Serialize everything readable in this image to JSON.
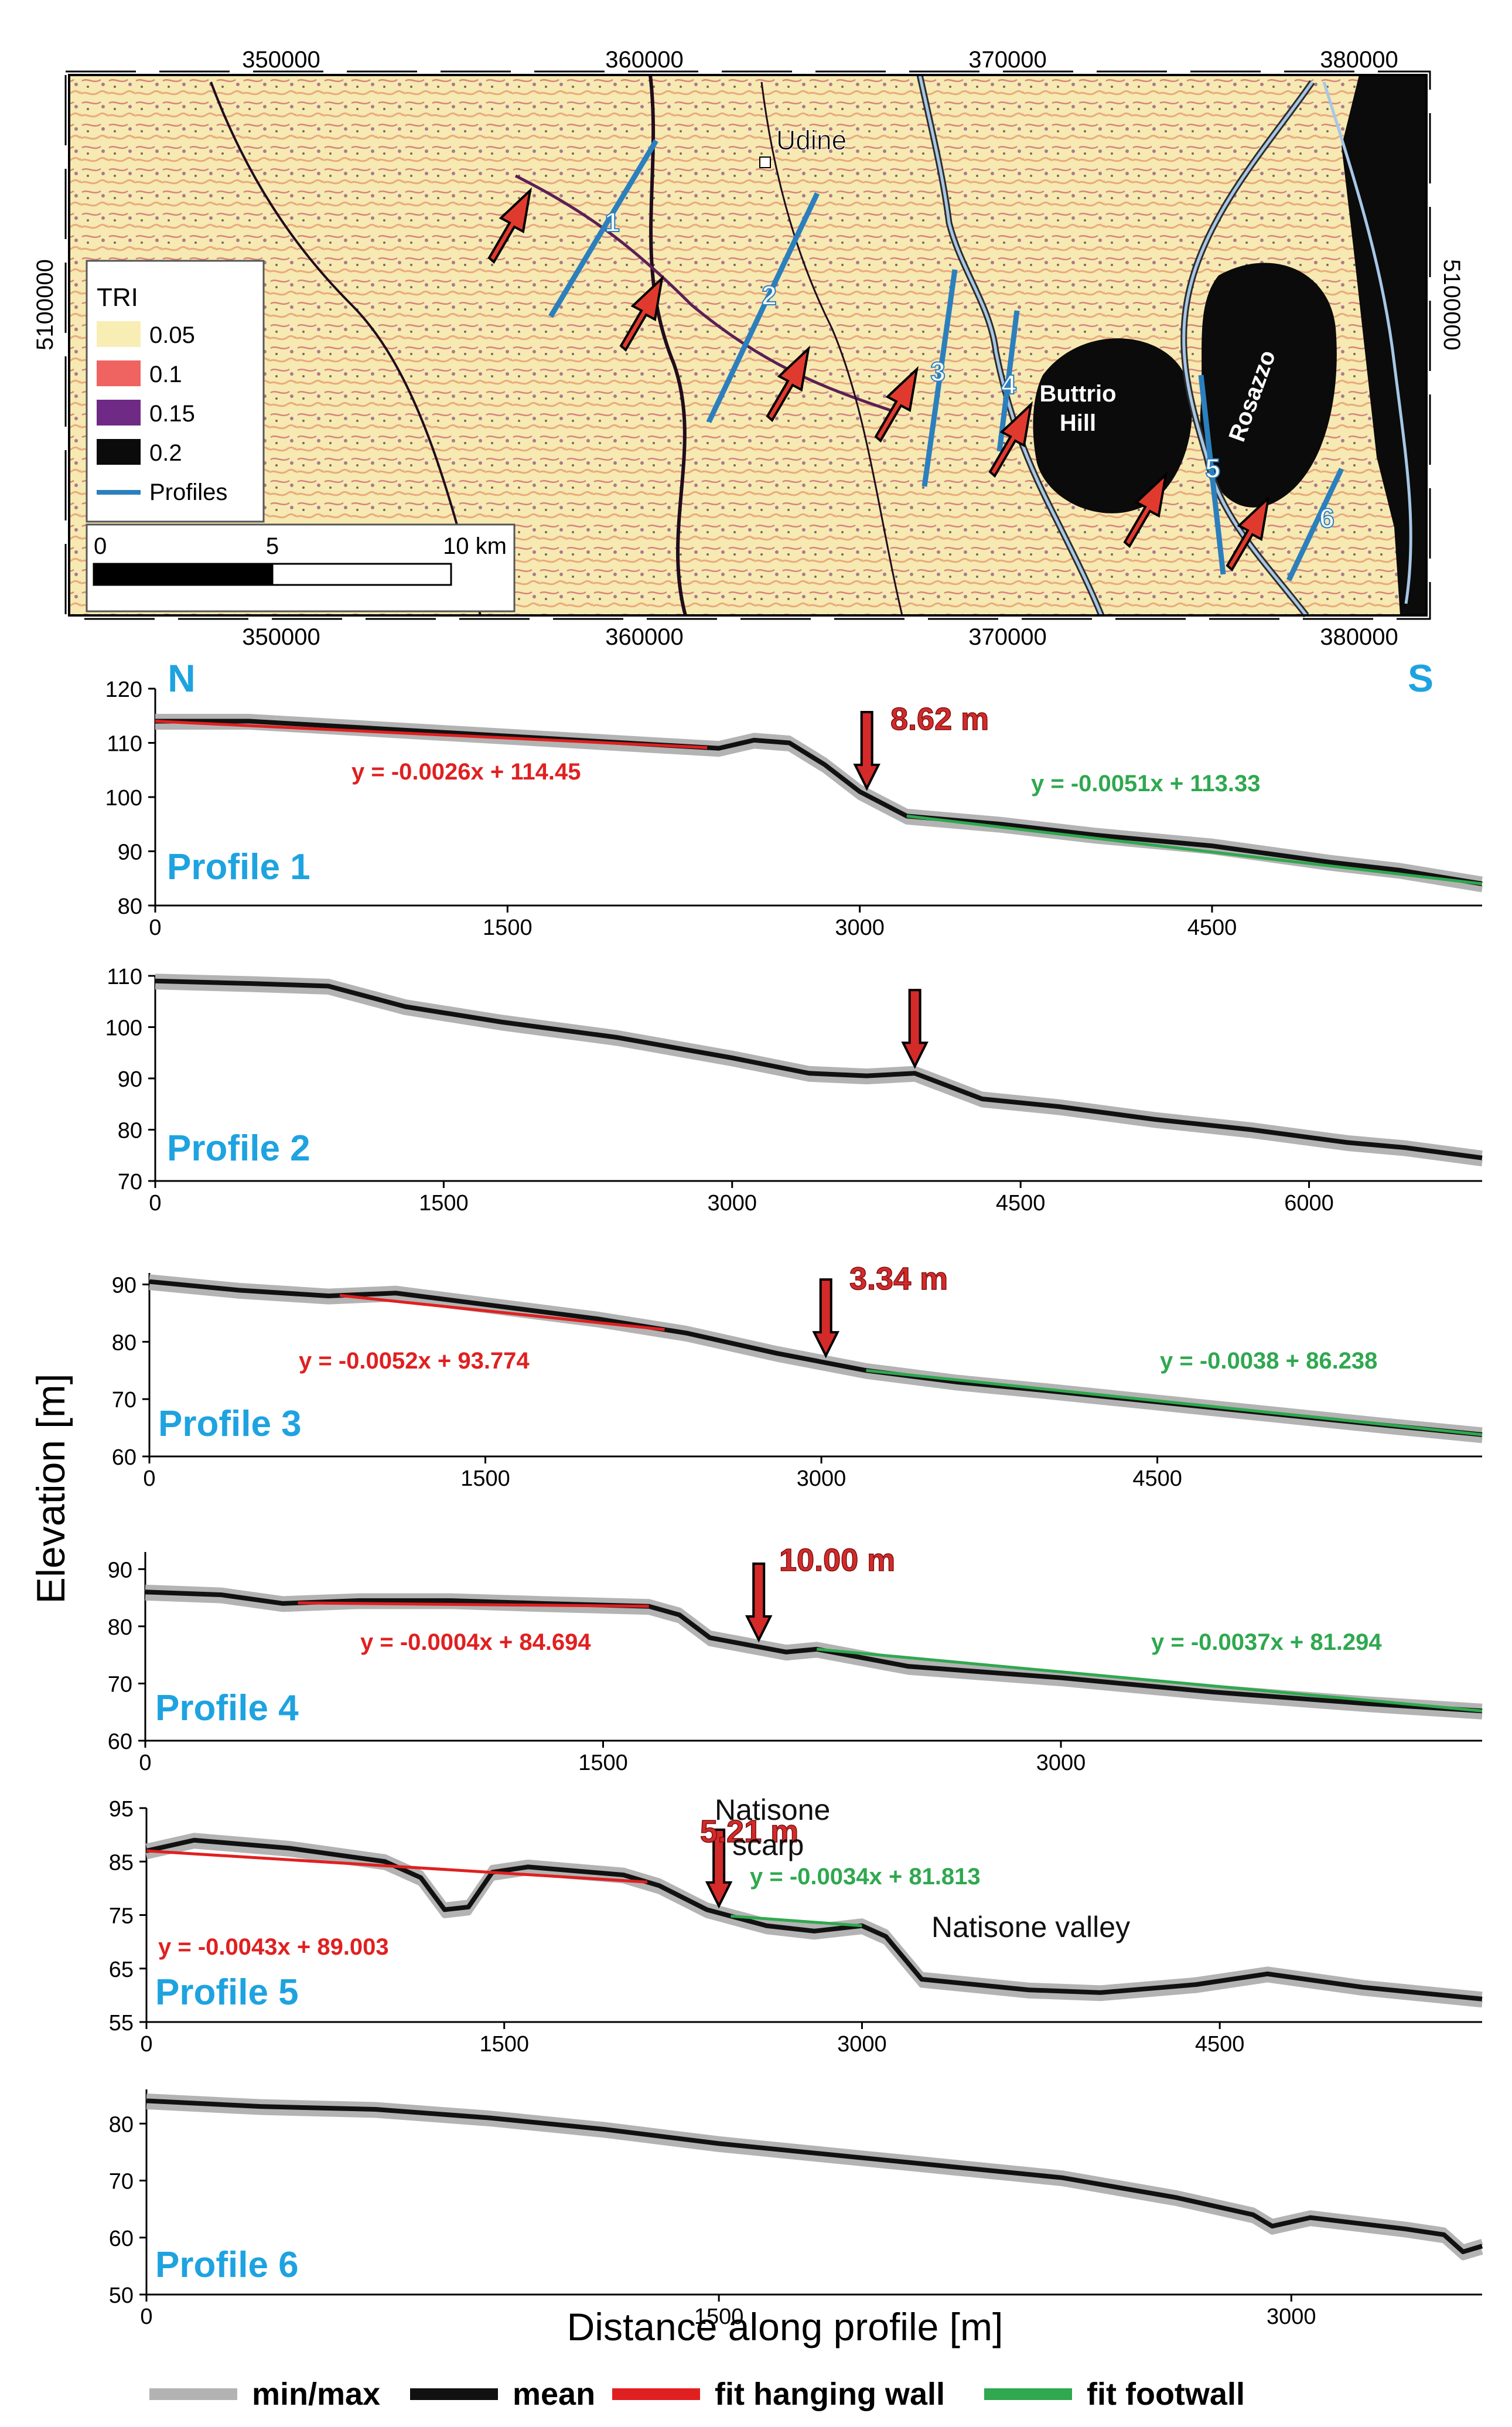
{
  "map": {
    "top_ticks": [
      "350000",
      "360000",
      "370000",
      "380000"
    ],
    "bottom_ticks": [
      "350000",
      "360000",
      "370000",
      "380000"
    ],
    "left_tick": "5100000",
    "right_tick": "5100000",
    "place_labels": {
      "udine": "Udine",
      "buttrio": "Buttrio",
      "hill": "Hill",
      "rosazzo": "Rosazzo"
    },
    "profile_numbers": [
      "1",
      "2",
      "3",
      "4",
      "5",
      "6"
    ],
    "legend": {
      "title": "TRI",
      "items": [
        {
          "label": "0.05",
          "color": "#f8eeb4"
        },
        {
          "label": "0.1",
          "color": "#ef6461"
        },
        {
          "label": "0.15",
          "color": "#6e2a84"
        },
        {
          "label": "0.2",
          "color": "#0b0b0b"
        }
      ],
      "profiles_label": "Profiles",
      "profiles_color": "#2c7fbd"
    },
    "scalebar": {
      "labels": [
        "0",
        "5",
        "10 km"
      ]
    }
  },
  "common": {
    "ylabel": "Elevation [m]",
    "xlabel": "Distance along profile [m]",
    "north": "N",
    "south": "S"
  },
  "colors": {
    "minmax": "#b3b3b3",
    "mean": "#111111",
    "hanging": "#e02020",
    "footwall": "#2fa84f",
    "profile_label": "#1ea3e0",
    "offset": "#d42a2a"
  },
  "legend_bottom": {
    "minmax": "min/max",
    "mean": "mean",
    "hanging": "fit hanging wall",
    "footwall": "fit footwall"
  },
  "chart_data": [
    {
      "type": "line",
      "title": "Profile 1",
      "xlim": [
        0,
        5650
      ],
      "ylim": [
        80,
        120
      ],
      "xticks": [
        0,
        1500,
        3000,
        4500
      ],
      "yticks": [
        80,
        90,
        100,
        110,
        120
      ],
      "mean": [
        [
          0,
          114
        ],
        [
          400,
          114
        ],
        [
          800,
          113
        ],
        [
          1200,
          112
        ],
        [
          1600,
          111
        ],
        [
          2000,
          110
        ],
        [
          2400,
          109
        ],
        [
          2550,
          110.5
        ],
        [
          2700,
          110
        ],
        [
          2850,
          106
        ],
        [
          3000,
          101
        ],
        [
          3200,
          96.5
        ],
        [
          3600,
          95
        ],
        [
          4000,
          93
        ],
        [
          4500,
          91
        ],
        [
          5000,
          88
        ],
        [
          5300,
          86.5
        ],
        [
          5650,
          84
        ]
      ],
      "hanging_fit": {
        "equation": "y = -0.0026x + 114.45",
        "x_range": [
          0,
          2350
        ],
        "slope": -0.0026,
        "intercept": 114.45
      },
      "footwall_fit": {
        "equation": "y = -0.0051x + 113.33",
        "x_range": [
          3200,
          5650
        ],
        "slope": -0.0051,
        "intercept": 113.33
      },
      "offset": {
        "label": "8.62 m",
        "x": 3030
      }
    },
    {
      "type": "line",
      "title": "Profile 2",
      "xlim": [
        0,
        6900
      ],
      "ylim": [
        70,
        110
      ],
      "xticks": [
        0,
        1500,
        3000,
        4500,
        6000
      ],
      "yticks": [
        70,
        80,
        90,
        100,
        110
      ],
      "mean": [
        [
          0,
          109
        ],
        [
          500,
          108.5
        ],
        [
          900,
          108
        ],
        [
          1300,
          104
        ],
        [
          1800,
          101
        ],
        [
          2400,
          98
        ],
        [
          3000,
          94
        ],
        [
          3400,
          91
        ],
        [
          3700,
          90.5
        ],
        [
          3950,
          91
        ],
        [
          4300,
          86
        ],
        [
          4700,
          84.5
        ],
        [
          5200,
          82
        ],
        [
          5700,
          80
        ],
        [
          6200,
          77.5
        ],
        [
          6500,
          76.5
        ],
        [
          6900,
          74.5
        ]
      ],
      "offset": {
        "label": "",
        "x": 3950
      }
    },
    {
      "type": "line",
      "title": "Profile 3",
      "xlim": [
        0,
        5950
      ],
      "ylim": [
        60,
        92
      ],
      "xticks": [
        0,
        1500,
        3000,
        4500
      ],
      "yticks": [
        60,
        70,
        80,
        90
      ],
      "mean": [
        [
          0,
          90.5
        ],
        [
          400,
          89
        ],
        [
          800,
          88
        ],
        [
          1100,
          88.5
        ],
        [
          1500,
          86.5
        ],
        [
          2000,
          84
        ],
        [
          2400,
          81.5
        ],
        [
          2800,
          78
        ],
        [
          3200,
          75
        ],
        [
          3600,
          73
        ],
        [
          4000,
          71.5
        ],
        [
          4500,
          69.5
        ],
        [
          5000,
          67.5
        ],
        [
          5500,
          65.5
        ],
        [
          5950,
          63.8
        ]
      ],
      "hanging_fit": {
        "equation": "y = -0.0052x + 93.774",
        "x_range": [
          850,
          2300
        ],
        "slope": -0.0052,
        "intercept": 93.774
      },
      "footwall_fit": {
        "equation": "y = -0.0038 + 86.238",
        "x_range": [
          3200,
          5950
        ],
        "slope": -0.0038,
        "intercept": 86.238
      },
      "offset": {
        "label": "3.34 m",
        "x": 3020
      }
    },
    {
      "type": "line",
      "title": "Profile 4",
      "xlim": [
        0,
        4380
      ],
      "ylim": [
        60,
        93
      ],
      "xticks": [
        0,
        1500,
        3000
      ],
      "yticks": [
        60,
        70,
        80,
        90
      ],
      "mean": [
        [
          0,
          86
        ],
        [
          250,
          85.5
        ],
        [
          450,
          84
        ],
        [
          700,
          84.5
        ],
        [
          1000,
          84.5
        ],
        [
          1300,
          84
        ],
        [
          1650,
          83.5
        ],
        [
          1750,
          82
        ],
        [
          1850,
          78
        ],
        [
          2000,
          76.5
        ],
        [
          2100,
          75.5
        ],
        [
          2200,
          76
        ],
        [
          2500,
          73
        ],
        [
          3000,
          71
        ],
        [
          3500,
          68.5
        ],
        [
          4000,
          66.5
        ],
        [
          4380,
          65.2
        ]
      ],
      "hanging_fit": {
        "equation": "y = -0.0004x + 84.694",
        "x_range": [
          500,
          1650
        ],
        "slope": -0.0004,
        "intercept": 84.694
      },
      "footwall_fit": {
        "equation": "y = -0.0037x + 81.294",
        "x_range": [
          2200,
          4380
        ],
        "slope": -0.0037,
        "intercept": 81.294
      },
      "offset": {
        "label": "10.00 m",
        "x": 2010
      }
    },
    {
      "type": "line",
      "title": "Profile 5",
      "xlim": [
        0,
        5600
      ],
      "ylim": [
        55,
        95
      ],
      "xticks": [
        0,
        1500,
        3000,
        4500
      ],
      "yticks": [
        55,
        65,
        75,
        85,
        95
      ],
      "mean": [
        [
          0,
          87
        ],
        [
          200,
          89
        ],
        [
          600,
          87.5
        ],
        [
          1000,
          85
        ],
        [
          1150,
          82
        ],
        [
          1250,
          76
        ],
        [
          1350,
          76.5
        ],
        [
          1450,
          83
        ],
        [
          1600,
          84
        ],
        [
          2000,
          82.5
        ],
        [
          2150,
          80.5
        ],
        [
          2350,
          76
        ],
        [
          2600,
          73
        ],
        [
          2800,
          72
        ],
        [
          3000,
          73
        ],
        [
          3100,
          71
        ],
        [
          3250,
          63
        ],
        [
          3700,
          61
        ],
        [
          4000,
          60.5
        ],
        [
          4400,
          62
        ],
        [
          4700,
          64
        ],
        [
          5100,
          61.5
        ],
        [
          5600,
          59.3
        ]
      ],
      "hanging_fit": {
        "equation": "y = -0.0043x + 89.003",
        "x_range": [
          0,
          2100
        ],
        "slope": -0.0043,
        "intercept": 89.003
      },
      "footwall_fit": {
        "equation": "y = -0.0034x + 81.813",
        "x_range": [
          2450,
          3000
        ],
        "slope": -0.0034,
        "intercept": 81.813
      },
      "offset": {
        "label": "5.21 m",
        "x": 2400
      },
      "annotations": {
        "scarp_line1": "Natisone",
        "scarp_line2": "scarp",
        "valley": "Natisone valley"
      }
    },
    {
      "type": "line",
      "title": "Profile 6",
      "xlim": [
        0,
        3500
      ],
      "ylim": [
        50,
        86
      ],
      "xticks": [
        0,
        1500,
        3000
      ],
      "yticks": [
        50,
        60,
        70,
        80
      ],
      "mean": [
        [
          0,
          84
        ],
        [
          300,
          83
        ],
        [
          600,
          82.5
        ],
        [
          900,
          81
        ],
        [
          1200,
          79
        ],
        [
          1500,
          76.5
        ],
        [
          1800,
          74.5
        ],
        [
          2100,
          72.5
        ],
        [
          2400,
          70.5
        ],
        [
          2700,
          67
        ],
        [
          2900,
          64
        ],
        [
          2950,
          62
        ],
        [
          3050,
          63.5
        ],
        [
          3300,
          61.5
        ],
        [
          3400,
          60.5
        ],
        [
          3450,
          57.5
        ],
        [
          3500,
          58.5
        ]
      ]
    }
  ]
}
